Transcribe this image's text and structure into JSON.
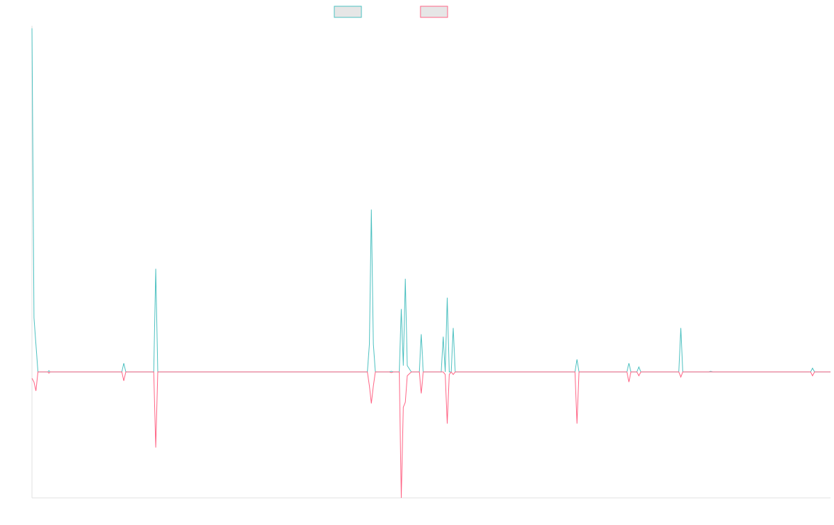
{
  "chart_data": {
    "type": "line",
    "title": "",
    "xlabel": "",
    "ylabel": "",
    "grid": false,
    "legend_position": "top",
    "ylim": [
      -100,
      275
    ],
    "xlim": [
      0,
      400
    ],
    "baseline": 0,
    "series": [
      {
        "color": "#4bc0c0",
        "legend_fill": "#e6e6e6",
        "points": [
          [
            0,
            273
          ],
          [
            1,
            43
          ],
          [
            3,
            0
          ],
          [
            8,
            0
          ],
          [
            8.5,
            1
          ],
          [
            9,
            0
          ],
          [
            45,
            0
          ],
          [
            46,
            7
          ],
          [
            47,
            0
          ],
          [
            61,
            0
          ],
          [
            62,
            82
          ],
          [
            63,
            0
          ],
          [
            168,
            0
          ],
          [
            169,
            22
          ],
          [
            170,
            129
          ],
          [
            171,
            22
          ],
          [
            172,
            0
          ],
          [
            179,
            0
          ],
          [
            180,
            0.5
          ],
          [
            181,
            0
          ],
          [
            184,
            0
          ],
          [
            185,
            50
          ],
          [
            186,
            5
          ],
          [
            187,
            74
          ],
          [
            188,
            5
          ],
          [
            190,
            0
          ],
          [
            194,
            0
          ],
          [
            195,
            30
          ],
          [
            196,
            0
          ],
          [
            205,
            0
          ],
          [
            206,
            28
          ],
          [
            207,
            0
          ],
          [
            208,
            59
          ],
          [
            209,
            0
          ],
          [
            210,
            0
          ],
          [
            211,
            35
          ],
          [
            212,
            0
          ],
          [
            272,
            0
          ],
          [
            273,
            10
          ],
          [
            274,
            0
          ],
          [
            298,
            0
          ],
          [
            299,
            7
          ],
          [
            300,
            0
          ],
          [
            303,
            0
          ],
          [
            304,
            4
          ],
          [
            305,
            0
          ],
          [
            324,
            0
          ],
          [
            325,
            35
          ],
          [
            326,
            0
          ],
          [
            339,
            0
          ],
          [
            340,
            0.5
          ],
          [
            341,
            0
          ],
          [
            390,
            0
          ],
          [
            391,
            3
          ],
          [
            392,
            0
          ],
          [
            400,
            0
          ]
        ]
      },
      {
        "color": "#ff6384",
        "legend_fill": "#e6e6e6",
        "points": [
          [
            0,
            -5
          ],
          [
            1,
            -8
          ],
          [
            2,
            -15
          ],
          [
            3,
            0
          ],
          [
            8,
            0
          ],
          [
            8.5,
            -1
          ],
          [
            9,
            0
          ],
          [
            45,
            0
          ],
          [
            46,
            -7
          ],
          [
            47,
            0
          ],
          [
            61,
            0
          ],
          [
            62,
            -60
          ],
          [
            63,
            0
          ],
          [
            168,
            0
          ],
          [
            169,
            -11
          ],
          [
            170,
            -25
          ],
          [
            171,
            -11
          ],
          [
            172,
            0
          ],
          [
            179,
            0
          ],
          [
            180,
            -0.5
          ],
          [
            181,
            0
          ],
          [
            184,
            0
          ],
          [
            185,
            -100
          ],
          [
            186,
            -28
          ],
          [
            187,
            -24
          ],
          [
            188,
            -3
          ],
          [
            190,
            0
          ],
          [
            194,
            0
          ],
          [
            195,
            -17
          ],
          [
            196,
            0
          ],
          [
            205,
            0
          ],
          [
            206,
            0
          ],
          [
            207,
            -2
          ],
          [
            208,
            -41
          ],
          [
            209,
            -2
          ],
          [
            210,
            0
          ],
          [
            211,
            -2
          ],
          [
            212,
            0
          ],
          [
            272,
            0
          ],
          [
            273,
            -41
          ],
          [
            274,
            0
          ],
          [
            298,
            0
          ],
          [
            299,
            -8
          ],
          [
            300,
            0
          ],
          [
            303,
            0
          ],
          [
            304,
            -3
          ],
          [
            305,
            0
          ],
          [
            324,
            0
          ],
          [
            325,
            -4
          ],
          [
            326,
            0
          ],
          [
            339,
            0
          ],
          [
            340,
            0
          ],
          [
            341,
            0
          ],
          [
            390,
            0
          ],
          [
            391,
            -3
          ],
          [
            392,
            0
          ],
          [
            400,
            0
          ]
        ]
      }
    ]
  }
}
